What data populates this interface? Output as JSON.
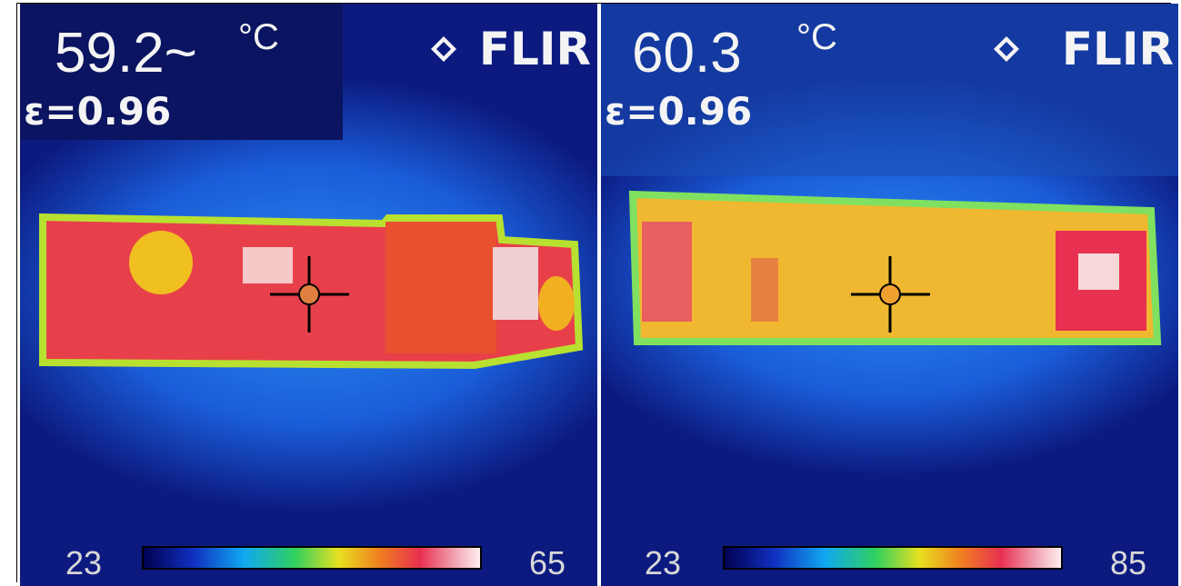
{
  "panels": [
    {
      "reading": "59.2~",
      "unit": "°C",
      "emissivity": "ε=0.96",
      "brand": "FLIR",
      "scale_min": 23,
      "scale_max": 65
    },
    {
      "reading": "60.3",
      "unit": "°C",
      "emissivity": "ε=0.96",
      "brand": "FLIR",
      "scale_min": 23,
      "scale_max": 85
    }
  ]
}
